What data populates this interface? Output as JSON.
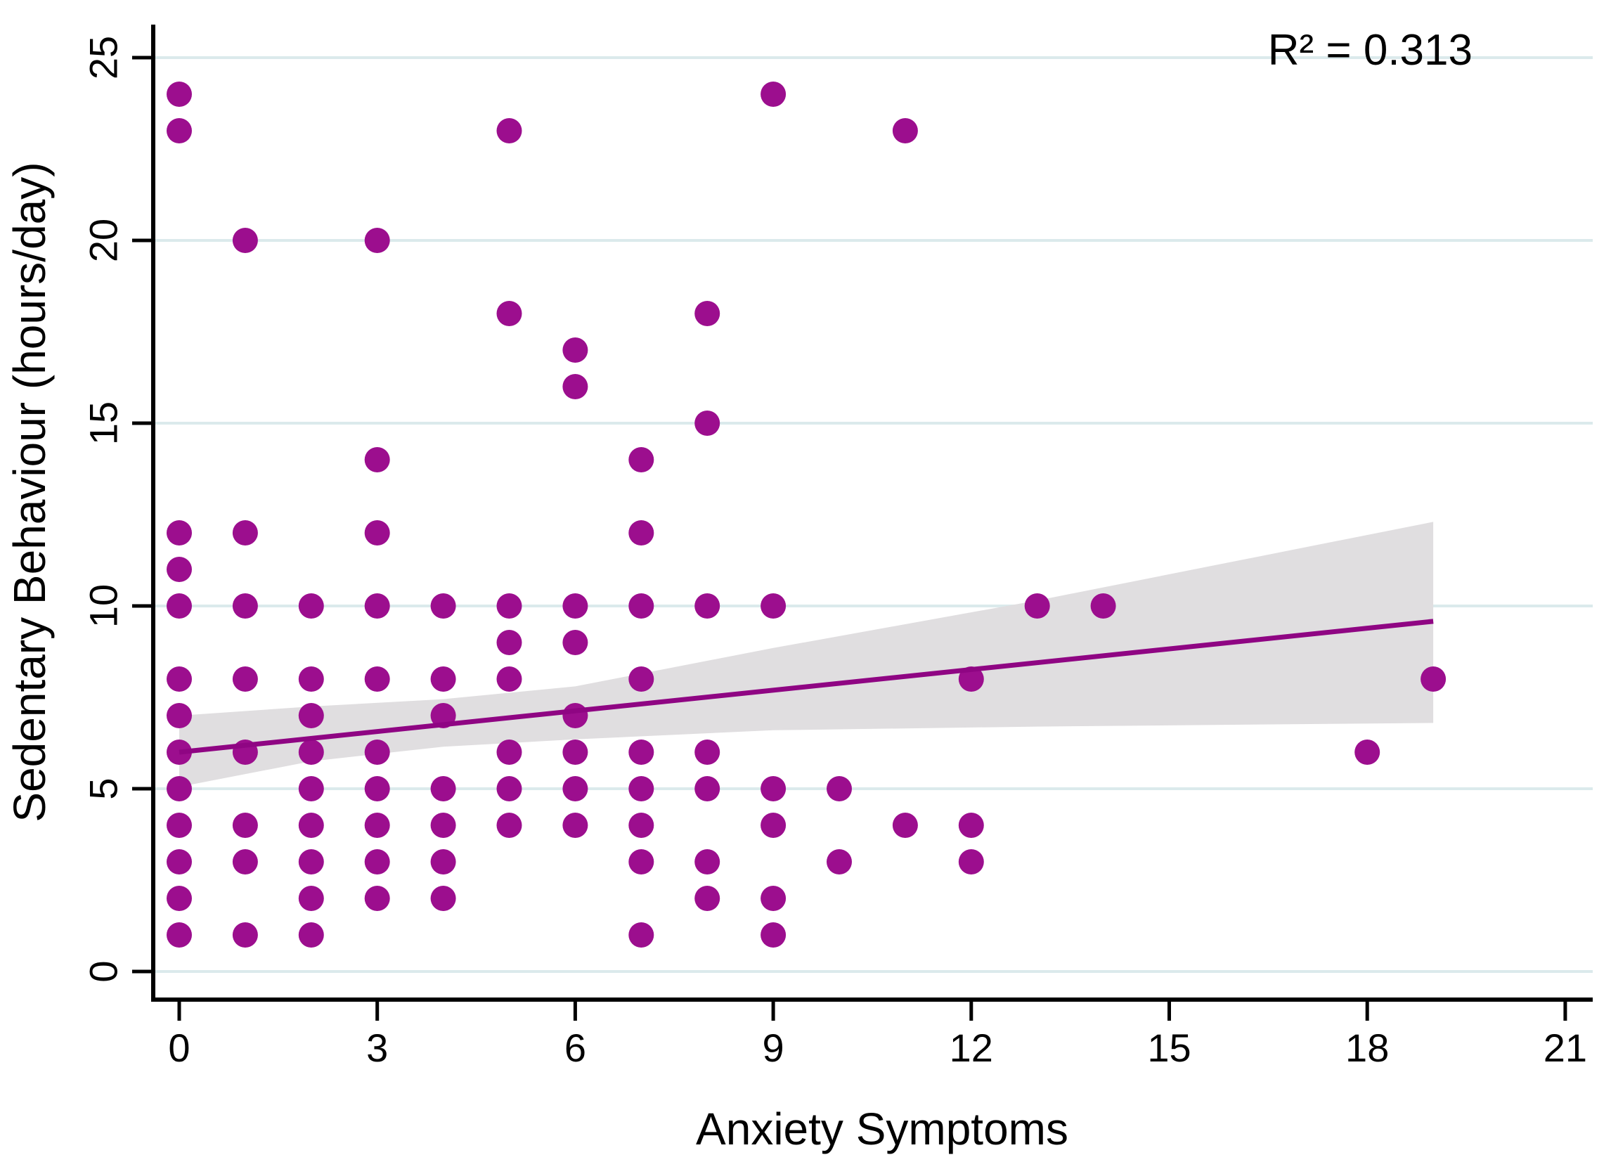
{
  "chart_data": {
    "type": "scatter",
    "title": "",
    "xlabel": "Anxiety Symptoms",
    "ylabel": "Sedentary Behaviour (hours/day)",
    "annotation": "R² = 0.313",
    "xlim": [
      0,
      21
    ],
    "ylim": [
      0,
      25
    ],
    "x_ticks": [
      0,
      3,
      6,
      9,
      12,
      15,
      18,
      21
    ],
    "y_ticks": [
      0,
      5,
      10,
      15,
      20,
      25
    ],
    "grid": "horizontal-only",
    "legend_position": "none",
    "points": [
      [
        0,
        1
      ],
      [
        0,
        2
      ],
      [
        0,
        3
      ],
      [
        0,
        4
      ],
      [
        0,
        5
      ],
      [
        0,
        6
      ],
      [
        0,
        7
      ],
      [
        0,
        8
      ],
      [
        0,
        10
      ],
      [
        0,
        11
      ],
      [
        0,
        12
      ],
      [
        0,
        23
      ],
      [
        0,
        24
      ],
      [
        1,
        1
      ],
      [
        1,
        3
      ],
      [
        1,
        4
      ],
      [
        1,
        6
      ],
      [
        1,
        8
      ],
      [
        1,
        10
      ],
      [
        1,
        12
      ],
      [
        1,
        20
      ],
      [
        2,
        1
      ],
      [
        2,
        2
      ],
      [
        2,
        3
      ],
      [
        2,
        4
      ],
      [
        2,
        5
      ],
      [
        2,
        6
      ],
      [
        2,
        7
      ],
      [
        2,
        8
      ],
      [
        2,
        10
      ],
      [
        3,
        2
      ],
      [
        3,
        3
      ],
      [
        3,
        4
      ],
      [
        3,
        5
      ],
      [
        3,
        6
      ],
      [
        3,
        8
      ],
      [
        3,
        10
      ],
      [
        3,
        12
      ],
      [
        3,
        14
      ],
      [
        3,
        20
      ],
      [
        4,
        2
      ],
      [
        4,
        3
      ],
      [
        4,
        4
      ],
      [
        4,
        5
      ],
      [
        4,
        7
      ],
      [
        4,
        8
      ],
      [
        4,
        10
      ],
      [
        5,
        4
      ],
      [
        5,
        5
      ],
      [
        5,
        6
      ],
      [
        5,
        8
      ],
      [
        5,
        9
      ],
      [
        5,
        10
      ],
      [
        5,
        18
      ],
      [
        5,
        23
      ],
      [
        6,
        4
      ],
      [
        6,
        5
      ],
      [
        6,
        6
      ],
      [
        6,
        7
      ],
      [
        6,
        9
      ],
      [
        6,
        10
      ],
      [
        6,
        16
      ],
      [
        6,
        17
      ],
      [
        7,
        1
      ],
      [
        7,
        3
      ],
      [
        7,
        4
      ],
      [
        7,
        5
      ],
      [
        7,
        6
      ],
      [
        7,
        8
      ],
      [
        7,
        10
      ],
      [
        7,
        12
      ],
      [
        7,
        14
      ],
      [
        8,
        2
      ],
      [
        8,
        3
      ],
      [
        8,
        5
      ],
      [
        8,
        6
      ],
      [
        8,
        10
      ],
      [
        8,
        15
      ],
      [
        8,
        18
      ],
      [
        9,
        1
      ],
      [
        9,
        2
      ],
      [
        9,
        4
      ],
      [
        9,
        5
      ],
      [
        9,
        10
      ],
      [
        9,
        24
      ],
      [
        10,
        3
      ],
      [
        10,
        5
      ],
      [
        11,
        4
      ],
      [
        11,
        23
      ],
      [
        12,
        3
      ],
      [
        12,
        4
      ],
      [
        12,
        8
      ],
      [
        13,
        10
      ],
      [
        14,
        10
      ],
      [
        18,
        6
      ],
      [
        19,
        8
      ]
    ],
    "fit_line": {
      "x1": 0,
      "y1": 6.0,
      "x2": 19,
      "y2": 9.58
    },
    "ci_band": {
      "bottom": [
        [
          0,
          5.05
        ],
        [
          2,
          5.75
        ],
        [
          4,
          6.15
        ],
        [
          6,
          6.35
        ],
        [
          9,
          6.6
        ],
        [
          13,
          6.7
        ],
        [
          19,
          6.8
        ]
      ],
      "top": [
        [
          0,
          7.0
        ],
        [
          2,
          7.25
        ],
        [
          4,
          7.45
        ],
        [
          6,
          7.8
        ],
        [
          9,
          8.85
        ],
        [
          13,
          10.15
        ],
        [
          19,
          12.3
        ]
      ]
    },
    "colors": {
      "dot": "#9C0E8E",
      "line": "#8F0583",
      "band": "#E0DEE0",
      "grid": "#DBEAEC",
      "axis": "#000000",
      "background": "#FFFFFF"
    }
  }
}
